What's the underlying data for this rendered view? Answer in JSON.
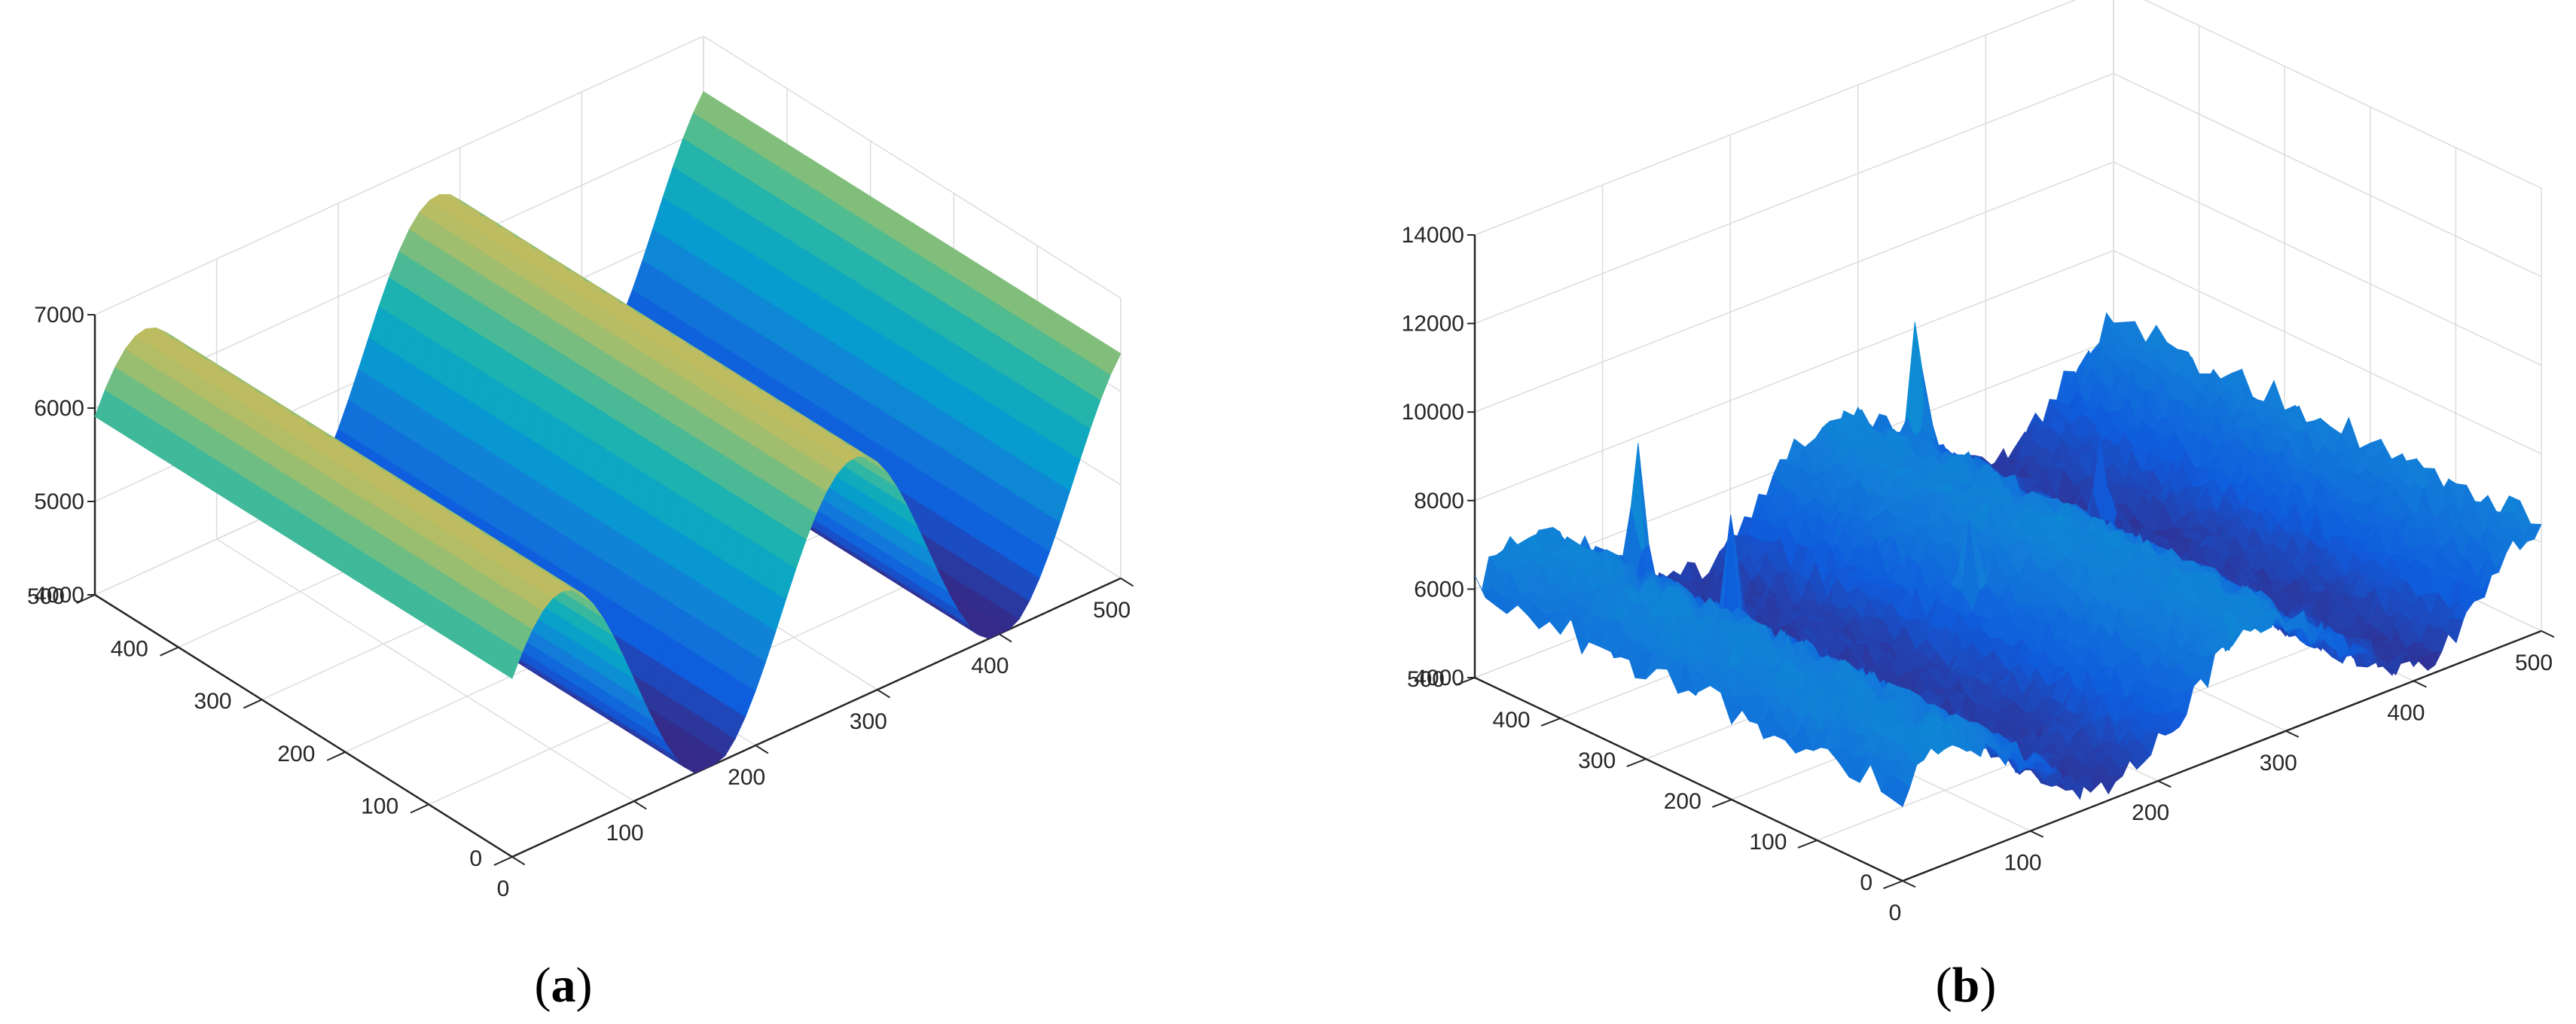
{
  "chart_data": [
    {
      "type": "surface",
      "panel_label": "a",
      "x_ticks": [
        "0",
        "100",
        "200",
        "300",
        "400",
        "500"
      ],
      "y_ticks": [
        "0",
        "100",
        "200",
        "300",
        "400",
        "500"
      ],
      "z_ticks": [
        "4000",
        "5000",
        "6000",
        "7000"
      ],
      "xlim": [
        0,
        500
      ],
      "ylim": [
        0,
        500
      ],
      "zlim": [
        4000,
        7000
      ],
      "grid": true,
      "colormap": "parula",
      "function": {
        "kind": "sinusoid",
        "base": 3950,
        "amplitude": 2650,
        "period": 240,
        "phase": 0.5
      },
      "x": [
        0,
        60,
        120,
        180,
        240,
        300,
        360,
        420,
        480,
        500
      ],
      "z": [
        4450,
        6100,
        6600,
        4050,
        4300,
        6000,
        6500,
        4600,
        4100,
        4700
      ]
    },
    {
      "type": "surface",
      "panel_label": "b",
      "x_ticks": [
        "0",
        "100",
        "200",
        "300",
        "400",
        "500"
      ],
      "y_ticks": [
        "0",
        "100",
        "200",
        "300",
        "400",
        "500"
      ],
      "z_ticks": [
        "4000",
        "6000",
        "8000",
        "10000",
        "12000",
        "14000"
      ],
      "xlim": [
        0,
        500
      ],
      "ylim": [
        0,
        500
      ],
      "zlim": [
        4000,
        14000
      ],
      "grid": true,
      "colormap": "parula",
      "function": {
        "kind": "sinusoid",
        "base": 4400,
        "amplitude": 2200,
        "period": 240,
        "phase": 0.5
      },
      "noise": 700,
      "peaks": [
        {
          "x": 110,
          "y": 470,
          "z": 12900
        },
        {
          "x": 330,
          "y": 470,
          "z": 12400
        },
        {
          "x": 135,
          "y": 400,
          "z": 8200
        },
        {
          "x": 230,
          "y": 260,
          "z": 7600
        },
        {
          "x": 390,
          "y": 350,
          "z": 7300
        }
      ]
    }
  ],
  "captions": [
    "a",
    "b"
  ],
  "colors": {
    "axis": "#262626",
    "grid": "#dcdcdc"
  }
}
